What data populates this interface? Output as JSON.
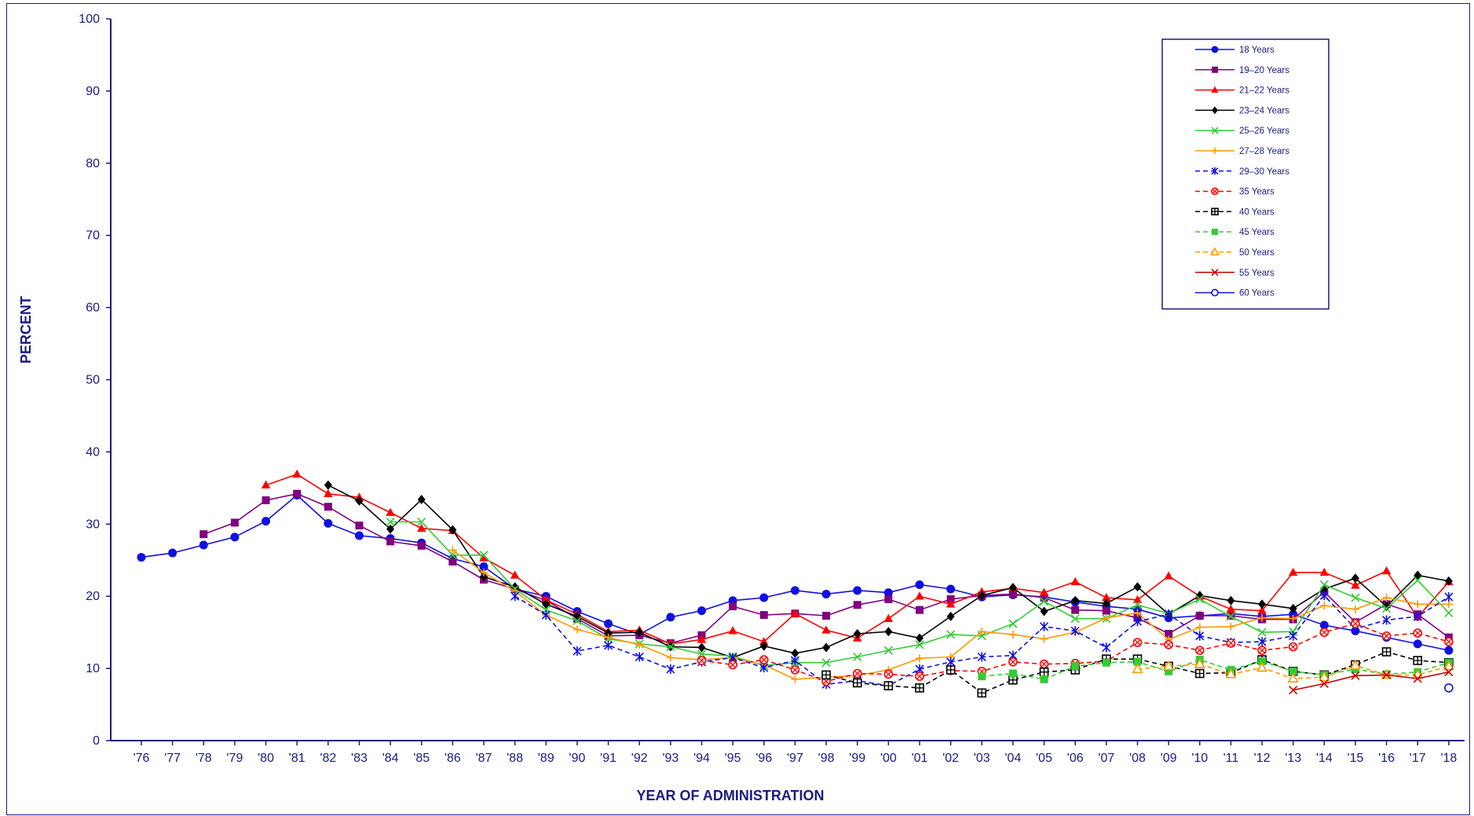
{
  "chart_data": {
    "type": "line",
    "xlabel": "YEAR OF ADMINISTRATION",
    "ylabel": "PERCENT",
    "ylim": [
      0,
      100
    ],
    "yticks": [
      0,
      10,
      20,
      30,
      40,
      50,
      60,
      70,
      80,
      90,
      100
    ],
    "x": [
      "'76",
      "'77",
      "'78",
      "'79",
      "'80",
      "'81",
      "'82",
      "'83",
      "'84",
      "'85",
      "'86",
      "'87",
      "'88",
      "'89",
      "'90",
      "'91",
      "'92",
      "'93",
      "'94",
      "'95",
      "'96",
      "'97",
      "'98",
      "'99",
      "'00",
      "'01",
      "'02",
      "'03",
      "'04",
      "'05",
      "'06",
      "'07",
      "'08",
      "'09",
      "'10",
      "'11",
      "'12",
      "'13",
      "'14",
      "'15",
      "'16",
      "'17",
      "'18"
    ],
    "grid": false,
    "legend_position": "top-right",
    "series": [
      {
        "name": "18 Years",
        "color": "#1010e0",
        "dash": false,
        "marker": "circle",
        "values": [
          25.4,
          26.0,
          27.1,
          28.2,
          30.4,
          34.0,
          30.1,
          28.4,
          28.0,
          27.4,
          25.2,
          24.1,
          21.0,
          20.0,
          17.9,
          16.2,
          14.7,
          17.1,
          18.0,
          19.4,
          19.8,
          20.8,
          20.3,
          20.8,
          20.5,
          21.6,
          21.0,
          19.9,
          20.2,
          19.9,
          19.2,
          18.6,
          18.2,
          17.0,
          17.3,
          17.6,
          17.2,
          17.5,
          16.0,
          15.2,
          14.3,
          13.4,
          12.5
        ]
      },
      {
        "name": "19–20 Years",
        "color": "#800080",
        "dash": false,
        "marker": "square",
        "values": [
          null,
          null,
          28.6,
          30.2,
          33.3,
          34.2,
          32.4,
          29.8,
          27.6,
          27.0,
          24.8,
          22.3,
          21.0,
          19.4,
          16.9,
          14.5,
          14.6,
          13.5,
          14.6,
          18.6,
          17.4,
          17.6,
          17.3,
          18.8,
          19.6,
          18.1,
          19.6,
          20.1,
          20.3,
          19.8,
          18.1,
          18.0,
          17.0,
          14.8,
          17.3,
          17.3,
          16.8,
          16.8,
          20.6,
          16.4,
          18.9,
          17.5,
          14.3
        ]
      },
      {
        "name": "21–22 Years",
        "color": "#ff0000",
        "dash": false,
        "marker": "triangle",
        "values": [
          null,
          null,
          null,
          null,
          35.4,
          36.9,
          34.2,
          33.7,
          31.6,
          29.4,
          29.1,
          25.3,
          22.9,
          19.5,
          17.5,
          15.1,
          15.3,
          13.4,
          14.0,
          15.2,
          13.7,
          17.6,
          15.3,
          14.2,
          16.9,
          20.0,
          18.9,
          20.6,
          21.1,
          20.5,
          22.0,
          19.8,
          19.5,
          22.8,
          20.0,
          18.2,
          18.0,
          23.3,
          23.3,
          21.5,
          23.5,
          17.1,
          22.0
        ]
      },
      {
        "name": "23–24 Years",
        "color": "#000000",
        "dash": false,
        "marker": "diamond",
        "values": [
          null,
          null,
          null,
          null,
          null,
          null,
          35.4,
          33.2,
          29.3,
          33.4,
          29.2,
          22.7,
          21.3,
          18.9,
          17.2,
          14.9,
          15.0,
          13.0,
          12.9,
          11.5,
          13.1,
          12.1,
          12.9,
          14.8,
          15.1,
          14.2,
          17.2,
          20.1,
          21.2,
          17.9,
          19.4,
          19.0,
          21.3,
          17.5,
          20.1,
          19.4,
          18.9,
          18.3,
          21.0,
          22.5,
          18.6,
          22.9,
          22.1
        ]
      },
      {
        "name": "25–26 Years",
        "color": "#33cc33",
        "dash": false,
        "marker": "x",
        "values": [
          null,
          null,
          null,
          null,
          null,
          null,
          null,
          null,
          30.3,
          30.3,
          25.7,
          25.7,
          21.0,
          18.1,
          16.6,
          14.1,
          13.4,
          13.0,
          12.0,
          11.7,
          10.4,
          10.8,
          10.8,
          11.6,
          12.5,
          13.3,
          14.7,
          14.5,
          16.2,
          19.3,
          16.9,
          16.9,
          18.8,
          17.6,
          19.6,
          17.2,
          15.0,
          15.1,
          21.6,
          19.8,
          18.3,
          22.2,
          17.7
        ]
      },
      {
        "name": "27–28 Years",
        "color": "#ff9900",
        "dash": false,
        "marker": "plus",
        "values": [
          null,
          null,
          null,
          null,
          null,
          null,
          null,
          null,
          null,
          null,
          26.4,
          23.3,
          20.7,
          17.4,
          15.4,
          14.3,
          13.3,
          11.5,
          11.2,
          11.5,
          10.5,
          8.5,
          8.8,
          9.0,
          9.8,
          11.4,
          11.6,
          15.1,
          14.7,
          14.1,
          15.0,
          17.0,
          17.7,
          14.0,
          15.7,
          15.8,
          17.0,
          16.9,
          18.7,
          18.2,
          19.8,
          18.9,
          18.9
        ]
      },
      {
        "name": "29–30 Years",
        "color": "#1010e0",
        "dash": true,
        "marker": "star",
        "values": [
          null,
          null,
          null,
          null,
          null,
          null,
          null,
          null,
          null,
          null,
          null,
          null,
          20.0,
          17.4,
          12.4,
          13.2,
          11.6,
          9.9,
          10.9,
          11.5,
          10.1,
          11.1,
          7.8,
          8.3,
          7.6,
          9.9,
          10.9,
          11.6,
          11.8,
          15.8,
          15.2,
          12.9,
          16.5,
          17.5,
          14.5,
          13.6,
          13.7,
          14.5,
          20.1,
          15.5,
          16.7,
          17.2,
          19.9
        ]
      },
      {
        "name": "35 Years",
        "color": "#ff0000",
        "dash": true,
        "marker": "circle-x",
        "values": [
          null,
          null,
          null,
          null,
          null,
          null,
          null,
          null,
          null,
          null,
          null,
          null,
          null,
          null,
          null,
          null,
          null,
          null,
          11.1,
          10.5,
          11.2,
          9.8,
          8.2,
          9.3,
          9.2,
          8.9,
          9.7,
          9.6,
          10.9,
          10.6,
          10.7,
          11.0,
          13.6,
          13.3,
          12.5,
          13.5,
          12.5,
          13.0,
          15.0,
          16.2,
          14.5,
          14.9,
          13.7
        ]
      },
      {
        "name": "40 Years",
        "color": "#000000",
        "dash": true,
        "marker": "square-plus",
        "values": [
          null,
          null,
          null,
          null,
          null,
          null,
          null,
          null,
          null,
          null,
          null,
          null,
          null,
          null,
          null,
          null,
          null,
          null,
          null,
          null,
          null,
          null,
          9.1,
          8.0,
          7.6,
          7.3,
          9.8,
          6.6,
          8.4,
          9.5,
          9.8,
          11.3,
          11.3,
          10.3,
          9.3,
          9.4,
          11.2,
          9.6,
          9.1,
          10.5,
          12.3,
          11.1,
          10.8
        ]
      },
      {
        "name": "45 Years",
        "color": "#33cc33",
        "dash": true,
        "marker": "square",
        "values": [
          null,
          null,
          null,
          null,
          null,
          null,
          null,
          null,
          null,
          null,
          null,
          null,
          null,
          null,
          null,
          null,
          null,
          null,
          null,
          null,
          null,
          null,
          null,
          null,
          null,
          null,
          null,
          8.9,
          9.3,
          8.5,
          10.3,
          10.8,
          10.9,
          9.6,
          11.2,
          9.8,
          11.0,
          9.6,
          9.1,
          9.9,
          9.2,
          9.5,
          10.8
        ]
      },
      {
        "name": "50 Years",
        "color": "#ff9900",
        "dash": true,
        "marker": "triangle-open",
        "values": [
          null,
          null,
          null,
          null,
          null,
          null,
          null,
          null,
          null,
          null,
          null,
          null,
          null,
          null,
          null,
          null,
          null,
          null,
          null,
          null,
          null,
          null,
          null,
          null,
          null,
          null,
          null,
          null,
          null,
          null,
          null,
          null,
          9.9,
          10.3,
          10.6,
          9.2,
          10.1,
          8.6,
          8.8,
          10.4,
          9.1,
          9.1,
          10.3
        ]
      },
      {
        "name": "55 Years",
        "color": "#cc0000",
        "dash": false,
        "marker": "x",
        "values": [
          null,
          null,
          null,
          null,
          null,
          null,
          null,
          null,
          null,
          null,
          null,
          null,
          null,
          null,
          null,
          null,
          null,
          null,
          null,
          null,
          null,
          null,
          null,
          null,
          null,
          null,
          null,
          null,
          null,
          null,
          null,
          null,
          null,
          null,
          null,
          null,
          null,
          7.0,
          7.9,
          9.0,
          9.1,
          8.6,
          9.5
        ]
      },
      {
        "name": "60 Years",
        "color": "#1010e0",
        "dash": false,
        "marker": "circle-open",
        "values": [
          null,
          null,
          null,
          null,
          null,
          null,
          null,
          null,
          null,
          null,
          null,
          null,
          null,
          null,
          null,
          null,
          null,
          null,
          null,
          null,
          null,
          null,
          null,
          null,
          null,
          null,
          null,
          null,
          null,
          null,
          null,
          null,
          null,
          null,
          null,
          null,
          null,
          null,
          null,
          null,
          null,
          null,
          7.3
        ]
      }
    ]
  }
}
